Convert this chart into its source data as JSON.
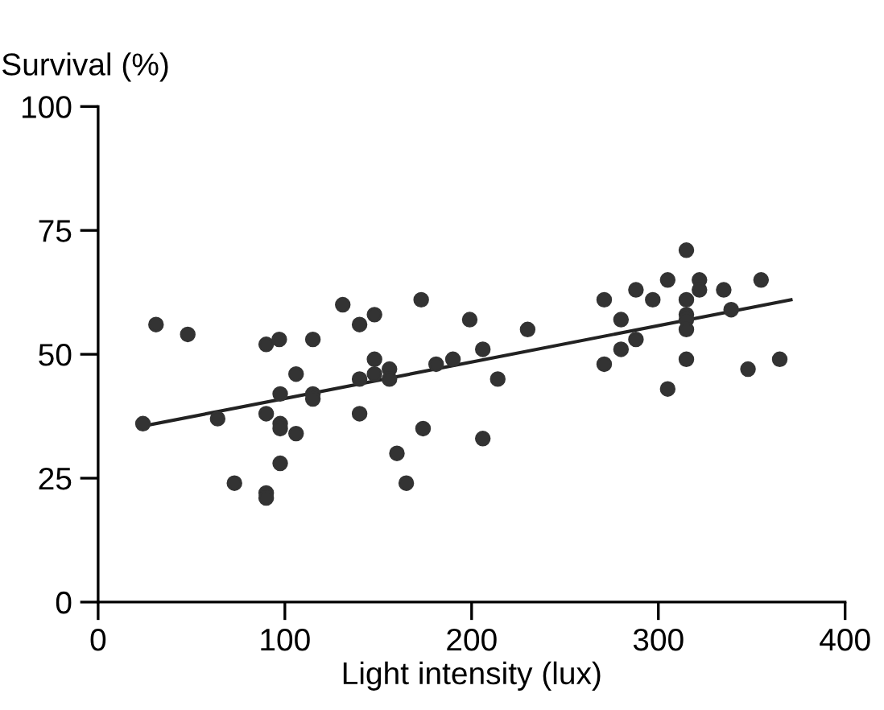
{
  "chart_data": {
    "type": "scatter",
    "xlabel": "Light intensity (lux)",
    "ylabel": "Survival (%)",
    "xlim": [
      0,
      400
    ],
    "ylim": [
      0,
      100
    ],
    "xticks": [
      0,
      100,
      200,
      300,
      400
    ],
    "yticks": [
      0,
      25,
      50,
      75,
      100
    ],
    "grid": false,
    "series": [
      {
        "marker": "circle",
        "color": "#333333",
        "x": [
          24,
          31,
          48,
          64,
          73,
          90,
          97,
          90,
          97.5,
          97.5,
          97.5,
          106,
          106,
          97.5,
          90,
          90,
          115,
          115,
          115,
          131,
          140,
          148,
          140,
          148,
          140,
          148,
          156,
          156,
          173,
          160,
          165,
          174,
          181,
          190,
          199,
          206,
          206,
          214,
          230,
          271,
          271,
          280,
          280,
          288,
          288,
          297,
          305,
          305,
          315,
          315,
          315,
          315,
          315,
          315,
          322,
          322,
          335,
          339,
          348,
          355,
          365
        ],
        "values": [
          36,
          56,
          54,
          37,
          24,
          52,
          53,
          38,
          42,
          36,
          35,
          46,
          34,
          28,
          22,
          21,
          53,
          42,
          41,
          60,
          56,
          58,
          45,
          49,
          38,
          46,
          47,
          45,
          61,
          30,
          24,
          35,
          48,
          49,
          57,
          51,
          33,
          45,
          55,
          61,
          48,
          57,
          51,
          63,
          53,
          61,
          65,
          43,
          71,
          61,
          58,
          57,
          55,
          49,
          65,
          63,
          63,
          59,
          47,
          65,
          49
        ]
      },
      {
        "type": "line",
        "marker": "none",
        "color": "#222222",
        "x": [
          24,
          371
        ],
        "values": [
          35.5,
          61
        ]
      }
    ]
  }
}
